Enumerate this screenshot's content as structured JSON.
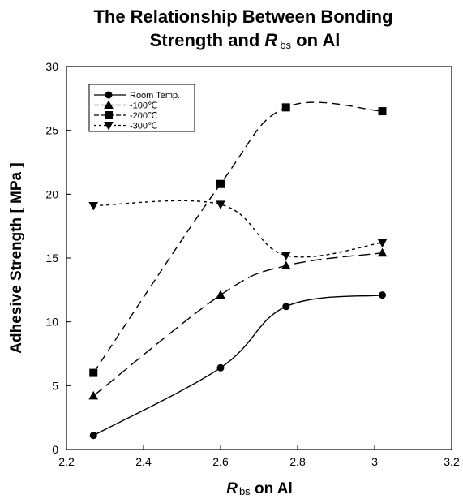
{
  "chart_data": {
    "type": "line",
    "title_line1": "The Relationship Between Bonding",
    "title_line2_prefix": "Strength and ",
    "title_line2_var": "R",
    "title_line2_sub": "bs",
    "title_line2_suffix": " on Al",
    "xlabel_var": "R",
    "xlabel_sub": "bs",
    "xlabel_suffix": " on  Al",
    "ylabel": "Adhesive  Strength  [  MPa  ]",
    "xlim": [
      2.2,
      3.2
    ],
    "ylim": [
      0,
      30
    ],
    "x_ticks": [
      "2.2",
      "2.4",
      "2.6",
      "2.8",
      "3",
      "3.2"
    ],
    "y_ticks": [
      "0",
      "5",
      "10",
      "15",
      "20",
      "25",
      "30"
    ],
    "grid": false,
    "legend_position": "top-left",
    "x": [
      2.27,
      2.6,
      2.77,
      3.02
    ],
    "series": [
      {
        "name": "Room Temp.",
        "marker": "circle",
        "dash": "",
        "values": [
          1.1,
          6.4,
          11.2,
          12.1
        ]
      },
      {
        "name": "-100℃",
        "marker": "triangle",
        "dash": "14,6",
        "values": [
          4.2,
          12.1,
          14.4,
          15.4
        ]
      },
      {
        "name": "-200℃",
        "marker": "square",
        "dash": "10,6",
        "values": [
          6.0,
          20.8,
          26.8,
          26.5
        ]
      },
      {
        "name": "-300℃",
        "marker": "triangle-down",
        "dash": "4,4",
        "values": [
          19.1,
          19.2,
          15.2,
          16.2
        ]
      }
    ]
  }
}
